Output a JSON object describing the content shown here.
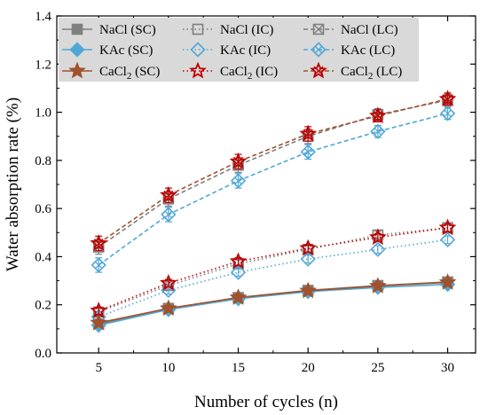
{
  "chart_data": {
    "type": "line",
    "title": "",
    "xlabel": "Number of cycles (n)",
    "ylabel": "Water absorption rate (%)",
    "x": [
      5,
      10,
      15,
      20,
      25,
      30
    ],
    "xlim": [
      2,
      32
    ],
    "ylim": [
      0.0,
      1.4
    ],
    "x_ticks": [
      "5",
      "10",
      "15",
      "20",
      "25",
      "30"
    ],
    "y_ticks": [
      "0.0",
      "0.2",
      "0.4",
      "0.6",
      "0.8",
      "1.0",
      "1.2",
      "1.4"
    ],
    "grid": false,
    "legend_position": "top",
    "colors": {
      "nacl": "#7f7f7f",
      "kac": "#4fa8d6",
      "cacl2_sc": "#a0522d",
      "cacl2_ic": "#c00000",
      "cacl2_lc": "#c00000",
      "cacl2_lc_line": "#a0522d",
      "legend_bg": "#d9d9d9"
    },
    "series": [
      {
        "name": "NaCl (SC)",
        "legend_sub": "",
        "legend_tail": "",
        "marker": "filled-square",
        "line": "solid",
        "color": "#7f7f7f",
        "values": [
          0.12,
          0.185,
          0.23,
          0.26,
          0.28,
          0.295
        ],
        "errors": [
          0.012,
          0.012,
          0.014,
          0.014,
          0.014,
          0.014
        ]
      },
      {
        "name": "NaCl (IC)",
        "legend_sub": "",
        "legend_tail": "",
        "marker": "open-square",
        "line": "dotted",
        "color": "#7f7f7f",
        "values": [
          0.17,
          0.28,
          0.37,
          0.43,
          0.49,
          0.52
        ],
        "errors": [
          0.015,
          0.015,
          0.016,
          0.016,
          0.016,
          0.016
        ]
      },
      {
        "name": "NaCl (LC)",
        "legend_sub": "",
        "legend_tail": "",
        "marker": "x-square",
        "line": "dashed",
        "color": "#7f7f7f",
        "values": [
          0.44,
          0.64,
          0.78,
          0.9,
          0.99,
          1.05
        ],
        "errors": [
          0.03,
          0.03,
          0.03,
          0.03,
          0.025,
          0.025
        ]
      },
      {
        "name": "KAc (SC)",
        "legend_sub": "",
        "legend_tail": "",
        "marker": "filled-diamond",
        "line": "solid",
        "color": "#4fa8d6",
        "values": [
          0.115,
          0.18,
          0.225,
          0.255,
          0.272,
          0.285
        ],
        "errors": [
          0.012,
          0.012,
          0.014,
          0.014,
          0.014,
          0.014
        ]
      },
      {
        "name": "KAc (IC)",
        "legend_sub": "",
        "legend_tail": "",
        "marker": "open-diamond",
        "line": "dotted",
        "color": "#4fa8d6",
        "values": [
          0.15,
          0.26,
          0.335,
          0.39,
          0.43,
          0.47
        ],
        "errors": [
          0.015,
          0.015,
          0.016,
          0.016,
          0.016,
          0.016
        ]
      },
      {
        "name": "KAc (LC)",
        "legend_sub": "",
        "legend_tail": "",
        "marker": "x-diamond",
        "line": "dashed",
        "color": "#4fa8d6",
        "values": [
          0.365,
          0.575,
          0.715,
          0.835,
          0.92,
          0.995
        ],
        "errors": [
          0.03,
          0.03,
          0.03,
          0.03,
          0.025,
          0.025
        ]
      },
      {
        "name": "CaCl",
        "legend_sub": "2",
        "legend_tail": " (SC)",
        "marker": "filled-star",
        "line": "solid",
        "color": "#a0522d",
        "values": [
          0.125,
          0.185,
          0.23,
          0.258,
          0.278,
          0.293
        ],
        "errors": [
          0.012,
          0.012,
          0.014,
          0.014,
          0.014,
          0.014
        ]
      },
      {
        "name": "CaCl",
        "legend_sub": "2",
        "legend_tail": " (IC)",
        "marker": "open-star",
        "line": "dotted",
        "color": "#c00000",
        "values": [
          0.175,
          0.29,
          0.38,
          0.435,
          0.48,
          0.52
        ],
        "errors": [
          0.015,
          0.015,
          0.016,
          0.016,
          0.016,
          0.016
        ]
      },
      {
        "name": "CaCl",
        "legend_sub": "2",
        "legend_tail": " (LC)",
        "marker": "x-star",
        "line": "dashed",
        "color": "#c00000",
        "values": [
          0.455,
          0.655,
          0.795,
          0.91,
          0.985,
          1.055
        ],
        "errors": [
          0.03,
          0.03,
          0.03,
          0.03,
          0.025,
          0.025
        ]
      }
    ]
  }
}
